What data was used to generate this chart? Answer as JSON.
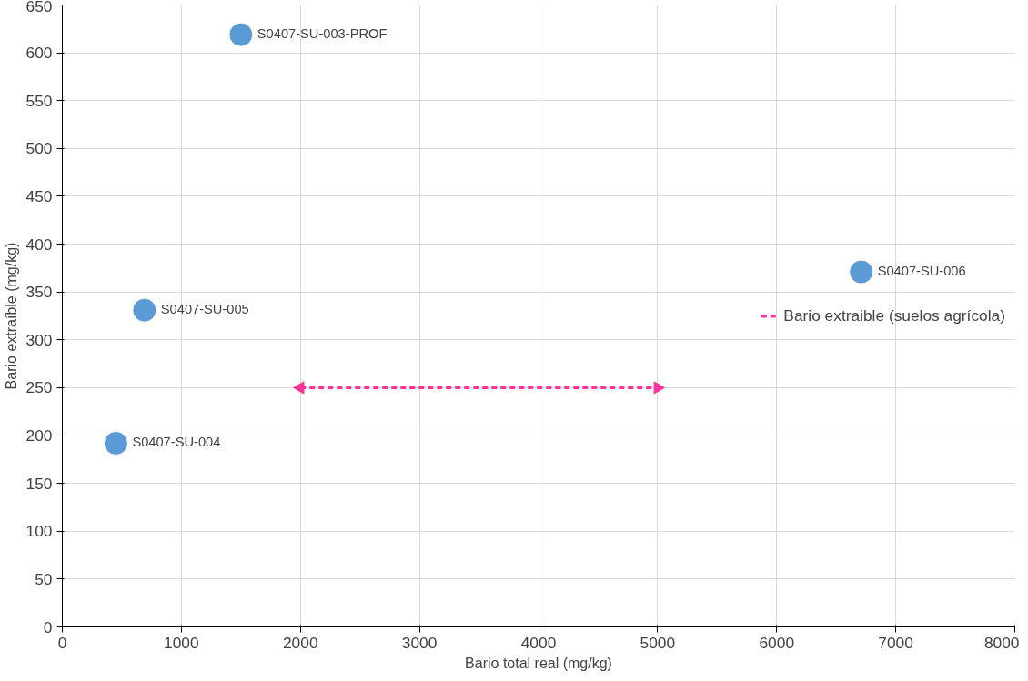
{
  "chart_data": {
    "type": "scatter",
    "xlabel": "Bario total real (mg/kg)",
    "ylabel": "Bario extraíble (mg/kg)",
    "xlim": [
      0,
      8000
    ],
    "xticks": [
      0,
      1000,
      2000,
      3000,
      4000,
      5000,
      6000,
      7000,
      8000
    ],
    "ylim": [
      0,
      650
    ],
    "yticks": [
      0,
      50,
      100,
      150,
      200,
      250,
      300,
      350,
      400,
      450,
      500,
      550,
      600,
      650
    ],
    "grid": true,
    "legend": "right",
    "marker": "circle",
    "series": [
      {
        "name": "S0407-SU-004",
        "color": "#5b9bd5",
        "x": [
          450
        ],
        "values": [
          192
        ]
      },
      {
        "name": "S0407-SU-005",
        "color": "#5b9bd5",
        "x": [
          690
        ],
        "values": [
          331
        ]
      },
      {
        "name": "S0407-SU-003-PROF",
        "color": "#5b9bd5",
        "x": [
          1500
        ],
        "values": [
          619
        ]
      },
      {
        "name": "S0407-SU-006",
        "color": "#5b9bd5",
        "x": [
          6710
        ],
        "values": [
          371
        ]
      },
      {
        "name": "Bario extraible (suelos agrícola)",
        "type": "line",
        "marker": "triangle",
        "line_style": "dashed",
        "color": "#ff3399",
        "x": [
          2000,
          5000
        ],
        "values": [
          250,
          250
        ]
      }
    ]
  }
}
